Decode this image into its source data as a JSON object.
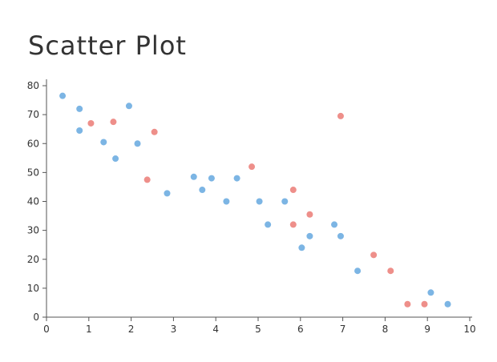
{
  "chart_data": {
    "type": "scatter",
    "title": "Scatter Plot",
    "xlabel": "",
    "ylabel": "",
    "xlim": [
      0,
      10
    ],
    "ylim": [
      0,
      80
    ],
    "x_ticks": [
      0,
      1,
      2,
      3,
      4,
      5,
      6,
      7,
      8,
      9,
      10
    ],
    "y_ticks": [
      0,
      10,
      20,
      30,
      40,
      50,
      60,
      70,
      80
    ],
    "grid": false,
    "series": [
      {
        "color": "#7cb5e4",
        "points": [
          {
            "x": 0.38,
            "y": 76.5
          },
          {
            "x": 0.78,
            "y": 72
          },
          {
            "x": 0.78,
            "y": 64.5
          },
          {
            "x": 1.35,
            "y": 60.5
          },
          {
            "x": 1.63,
            "y": 54.8
          },
          {
            "x": 1.95,
            "y": 73
          },
          {
            "x": 2.15,
            "y": 60
          },
          {
            "x": 2.85,
            "y": 42.8
          },
          {
            "x": 3.48,
            "y": 48.5
          },
          {
            "x": 3.68,
            "y": 44
          },
          {
            "x": 3.9,
            "y": 48
          },
          {
            "x": 4.25,
            "y": 40
          },
          {
            "x": 4.5,
            "y": 48
          },
          {
            "x": 5.03,
            "y": 40
          },
          {
            "x": 5.23,
            "y": 32
          },
          {
            "x": 5.63,
            "y": 40
          },
          {
            "x": 6.03,
            "y": 24
          },
          {
            "x": 6.22,
            "y": 28
          },
          {
            "x": 6.8,
            "y": 32
          },
          {
            "x": 6.95,
            "y": 28
          },
          {
            "x": 7.35,
            "y": 16
          },
          {
            "x": 9.08,
            "y": 8.5
          },
          {
            "x": 9.48,
            "y": 4.5
          }
        ]
      },
      {
        "color": "#ee8f8a",
        "points": [
          {
            "x": 1.05,
            "y": 67
          },
          {
            "x": 1.58,
            "y": 67.5
          },
          {
            "x": 2.38,
            "y": 47.5
          },
          {
            "x": 2.55,
            "y": 64
          },
          {
            "x": 4.85,
            "y": 52
          },
          {
            "x": 5.83,
            "y": 44
          },
          {
            "x": 5.83,
            "y": 32
          },
          {
            "x": 6.22,
            "y": 35.5
          },
          {
            "x": 6.95,
            "y": 69.5
          },
          {
            "x": 7.73,
            "y": 21.5
          },
          {
            "x": 8.13,
            "y": 16
          },
          {
            "x": 8.53,
            "y": 4.5
          },
          {
            "x": 8.93,
            "y": 4.5
          }
        ]
      }
    ]
  }
}
